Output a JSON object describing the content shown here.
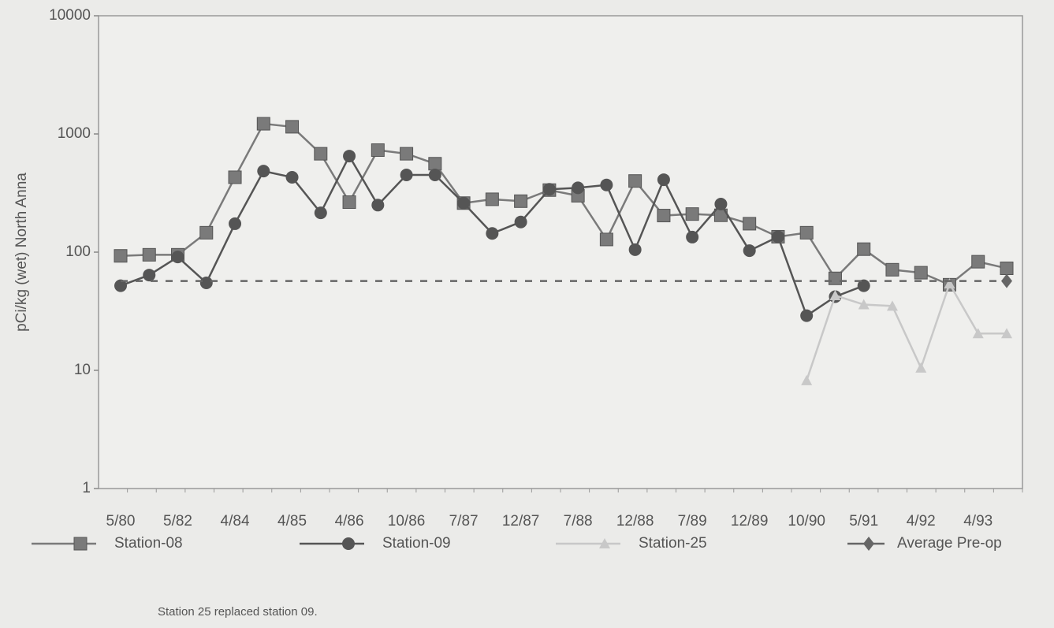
{
  "chart_data": {
    "type": "line",
    "y_label": "pCi/kg (wet) North Anna",
    "note": "Station 25 replaced station 09.",
    "categories": [
      "5/80",
      null,
      "5/82",
      null,
      "4/84",
      null,
      "4/85",
      null,
      "4/86",
      null,
      "10/86",
      null,
      "7/87",
      null,
      "12/87",
      null,
      "7/88",
      null,
      "12/88",
      null,
      "7/89",
      null,
      "12/89",
      null,
      "10/90",
      null,
      "5/91",
      null,
      "4/92",
      null,
      "4/93",
      null
    ],
    "log_scale": true,
    "ylim": [
      1,
      10000
    ],
    "yticks": [
      1,
      10,
      100,
      1000,
      10000
    ],
    "series": [
      {
        "name": "Station-08",
        "color": "#7a7a7a",
        "marker": "square",
        "values": [
          93,
          95,
          95,
          146,
          430,
          1220,
          1150,
          680,
          265,
          730,
          680,
          560,
          260,
          280,
          270,
          335,
          300,
          128,
          400,
          204,
          210,
          205,
          174,
          135,
          146,
          60,
          106,
          71,
          67,
          53,
          83,
          73
        ]
      },
      {
        "name": "Station-09",
        "color": "#555555",
        "marker": "circle",
        "values": [
          52,
          64,
          91,
          55,
          174,
          485,
          430,
          215,
          650,
          250,
          450,
          450,
          260,
          144,
          180,
          340,
          350,
          370,
          105,
          410,
          134,
          255,
          103,
          135,
          29,
          42,
          52,
          null,
          null,
          null,
          null,
          null
        ]
      },
      {
        "name": "Station-25",
        "color": "#c8c8c8",
        "marker": "triangle",
        "values": [
          null,
          null,
          null,
          null,
          null,
          null,
          null,
          null,
          null,
          null,
          null,
          null,
          null,
          null,
          null,
          null,
          null,
          null,
          null,
          null,
          null,
          null,
          null,
          null,
          8.2,
          43,
          36,
          35,
          10.5,
          54,
          20.5,
          20.5
        ]
      },
      {
        "name": "Average Pre-op",
        "color": "#666666",
        "marker": "diamond",
        "dashed": true,
        "values": [
          57,
          57,
          57,
          57,
          57,
          57,
          57,
          57,
          57,
          57,
          57,
          57,
          57,
          57,
          57,
          57,
          57,
          57,
          57,
          57,
          57,
          57,
          57,
          57,
          57,
          57,
          57,
          57,
          57,
          57,
          57,
          57
        ]
      }
    ]
  }
}
